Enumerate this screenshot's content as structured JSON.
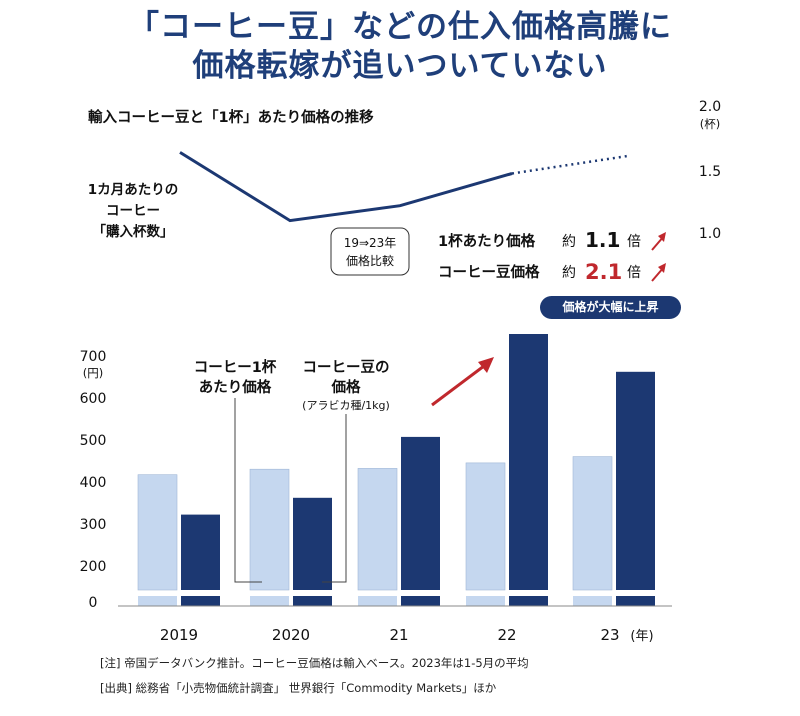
{
  "title": {
    "line1": "「コーヒー豆」などの仕入価格高騰に",
    "line2": "価格転嫁が追いついていない"
  },
  "colors": {
    "title": "#1f3f7a",
    "cup_price_bar": "#c5d7ef",
    "bean_price_bar": "#1c3872",
    "line": "#1c3872",
    "arrow": "#c0282d",
    "highlight_value": "#c0282d"
  },
  "line_chart": {
    "subtitle": "輸入コーヒー豆と「1杯」あたり価格の推移",
    "series_label": [
      "1カ月あたりの",
      "コーヒー",
      "「購入杯数」"
    ],
    "y_axis_unit": "(杯)",
    "comparison_box": [
      "19⇒23年",
      "価格比較"
    ],
    "cup_compare_label": "1杯あたり価格",
    "cup_compare_prefix": "約",
    "cup_compare_value": "1.1",
    "cup_compare_suffix": "倍",
    "bean_compare_label": "コーヒー豆価格",
    "bean_compare_prefix": "約",
    "bean_compare_value": "2.1",
    "bean_compare_suffix": "倍",
    "badge": "価格が大幅に上昇"
  },
  "bar_chart": {
    "y_axis_unit": "(円)",
    "legend_cup": [
      "コーヒー1杯",
      "あたり価格"
    ],
    "legend_bean": [
      "コーヒー豆の",
      "価格"
    ],
    "legend_bean_sub": "(アラビカ種/1kg)",
    "x_unit": "(年)"
  },
  "chart_data": [
    {
      "type": "line",
      "x": [
        "2019",
        "2020",
        "21",
        "22",
        "23"
      ],
      "series": [
        {
          "name": "1カ月あたりのコーヒー「購入杯数」",
          "values": [
            1.65,
            1.1,
            1.22,
            1.48,
            1.62
          ],
          "projected_from_index": 3
        }
      ],
      "yticks": [
        "1.0",
        "1.5",
        "2.0"
      ],
      "ylim": [
        1.0,
        2.0
      ],
      "ylabel": "(杯)"
    },
    {
      "type": "bar",
      "categories": [
        "2019",
        "2020",
        "21",
        "22",
        "23"
      ],
      "series": [
        {
          "name": "コーヒー1杯あたり価格",
          "values": [
            415,
            428,
            430,
            443,
            458
          ]
        },
        {
          "name": "コーヒー豆の価格(アラビカ種/1kg)",
          "values": [
            320,
            360,
            505,
            750,
            660
          ]
        }
      ],
      "yticks": [
        "0",
        "200",
        "300",
        "400",
        "500",
        "600",
        "700"
      ],
      "ylabel": "(円)",
      "axis_break": true
    }
  ],
  "footnotes": [
    "[注] 帝国データバンク推計。コーヒー豆価格は輸入ベース。2023年は1-5月の平均",
    "[出典] 総務省「小売物価統計調査」 世界銀行「Commodity Markets」ほか"
  ]
}
